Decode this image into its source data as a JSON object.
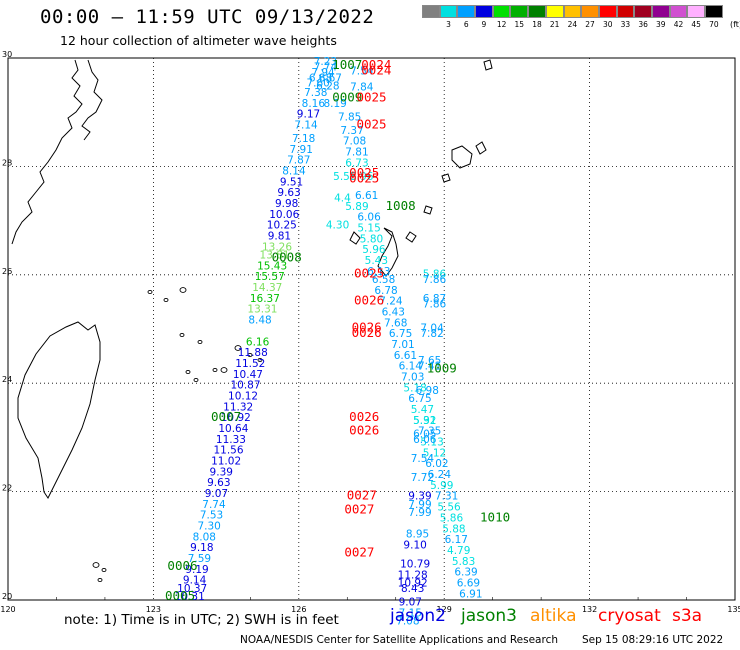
{
  "header": {
    "title": "00:00 – 11:59 UTC 09/13/2022",
    "subtitle": "12 hour collection of altimeter wave heights"
  },
  "colorbar": {
    "labels": [
      "3",
      "6",
      "9",
      "12",
      "15",
      "18",
      "21",
      "24",
      "27",
      "30",
      "33",
      "36",
      "39",
      "42",
      "45",
      "70"
    ],
    "colors": [
      "#808080",
      "#00e0e0",
      "#00a0ff",
      "#0000e0",
      "#00e000",
      "#00b000",
      "#008000",
      "#ffff00",
      "#ffc000",
      "#ff9000",
      "#ff0000",
      "#d00000",
      "#a00020",
      "#900090",
      "#d050d0",
      "#ffb0ff",
      "#000000"
    ],
    "unit": "(ft)"
  },
  "map": {
    "lon_ticks": [
      "120",
      "123",
      "126",
      "129",
      "132",
      "135"
    ],
    "lat_ticks": [
      "30",
      "28",
      "26",
      "24",
      "22",
      "20"
    ],
    "lon_range": [
      120,
      135
    ],
    "lat_range": [
      20,
      30
    ],
    "grid": true
  },
  "legend": {
    "note": "note: 1) Time is in UTC; 2) SWH is in feet",
    "items": [
      {
        "label": "jason2",
        "color": "#0000e0"
      },
      {
        "label": "jason3",
        "color": "#008000"
      },
      {
        "label": "altika",
        "color": "#ff9000"
      },
      {
        "label": "cryosat",
        "color": "#ff0000"
      },
      {
        "label": "s3a",
        "color": "#ff0000"
      }
    ]
  },
  "footer": {
    "credit": "NOAA/NESDIS Center for Satellite Applications and Research",
    "timestamp": "Sep 15 08:29:16 UTC 2022"
  },
  "chart_data": {
    "type": "scatter",
    "observations": [
      {
        "lon": 126.55,
        "lat": 29.87,
        "v": "7.23",
        "c": "#00a0ff"
      },
      {
        "lon": 126.55,
        "lat": 29.77,
        "v": "7.74",
        "c": "#00a0ff"
      },
      {
        "lon": 126.5,
        "lat": 29.67,
        "v": "7.94",
        "c": "#00a0ff"
      },
      {
        "lon": 126.45,
        "lat": 29.57,
        "v": "6.88",
        "c": "#00a0ff"
      },
      {
        "lon": 126.65,
        "lat": 29.57,
        "v": "6.67",
        "c": "#00a0ff"
      },
      {
        "lon": 126.4,
        "lat": 29.47,
        "v": "7.60",
        "c": "#00a0ff"
      },
      {
        "lon": 126.6,
        "lat": 29.42,
        "v": "6.28",
        "c": "#00a0ff"
      },
      {
        "lon": 126.35,
        "lat": 29.3,
        "v": "7.38",
        "c": "#00a0ff"
      },
      {
        "lon": 126.3,
        "lat": 29.1,
        "v": "8.16",
        "c": "#00a0ff"
      },
      {
        "lon": 126.75,
        "lat": 29.1,
        "v": "8.19",
        "c": "#00a0ff"
      },
      {
        "lon": 126.2,
        "lat": 28.9,
        "v": "9.17",
        "c": "#0000e0"
      },
      {
        "lon": 126.15,
        "lat": 28.7,
        "v": "7.14",
        "c": "#00a0ff"
      },
      {
        "lon": 126.1,
        "lat": 28.45,
        "v": "7.18",
        "c": "#00a0ff"
      },
      {
        "lon": 126.05,
        "lat": 28.25,
        "v": "7.91",
        "c": "#00a0ff"
      },
      {
        "lon": 126.0,
        "lat": 28.05,
        "v": "7.87",
        "c": "#00a0ff"
      },
      {
        "lon": 125.9,
        "lat": 27.85,
        "v": "8.14",
        "c": "#00a0ff"
      },
      {
        "lon": 125.85,
        "lat": 27.65,
        "v": "9.51",
        "c": "#0000e0"
      },
      {
        "lon": 125.8,
        "lat": 27.45,
        "v": "9.63",
        "c": "#0000e0"
      },
      {
        "lon": 125.75,
        "lat": 27.25,
        "v": "9.98",
        "c": "#0000e0"
      },
      {
        "lon": 125.7,
        "lat": 27.05,
        "v": "10.06",
        "c": "#0000e0"
      },
      {
        "lon": 125.65,
        "lat": 26.85,
        "v": "10.25",
        "c": "#0000e0"
      },
      {
        "lon": 125.6,
        "lat": 26.65,
        "v": "9.81",
        "c": "#0000e0"
      },
      {
        "lon": 125.55,
        "lat": 26.45,
        "v": "13.26",
        "c": "#80e060"
      },
      {
        "lon": 125.5,
        "lat": 26.3,
        "v": "13.81",
        "c": "#80e060"
      },
      {
        "lon": 125.45,
        "lat": 26.1,
        "v": "15.43",
        "c": "#00c000"
      },
      {
        "lon": 125.4,
        "lat": 25.9,
        "v": "15.57",
        "c": "#00c000"
      },
      {
        "lon": 125.35,
        "lat": 25.7,
        "v": "14.37",
        "c": "#80e060"
      },
      {
        "lon": 125.3,
        "lat": 25.5,
        "v": "16.37",
        "c": "#00c000"
      },
      {
        "lon": 125.25,
        "lat": 25.3,
        "v": "13.31",
        "c": "#80e060"
      },
      {
        "lon": 125.2,
        "lat": 25.1,
        "v": "8.48",
        "c": "#00a0ff"
      },
      {
        "lon": 125.15,
        "lat": 24.7,
        "v": "6.16",
        "c": "#00c000"
      },
      {
        "lon": 125.05,
        "lat": 24.5,
        "v": "11.88",
        "c": "#0000e0"
      },
      {
        "lon": 125.0,
        "lat": 24.3,
        "v": "11.52",
        "c": "#0000e0"
      },
      {
        "lon": 124.95,
        "lat": 24.1,
        "v": "10.47",
        "c": "#0000e0"
      },
      {
        "lon": 124.9,
        "lat": 23.9,
        "v": "10.87",
        "c": "#0000e0"
      },
      {
        "lon": 124.85,
        "lat": 23.7,
        "v": "10.12",
        "c": "#0000e0"
      },
      {
        "lon": 124.75,
        "lat": 23.5,
        "v": "11.32",
        "c": "#0000e0"
      },
      {
        "lon": 124.7,
        "lat": 23.3,
        "v": "10.92",
        "c": "#0000e0"
      },
      {
        "lon": 124.65,
        "lat": 23.1,
        "v": "10.64",
        "c": "#0000e0"
      },
      {
        "lon": 124.6,
        "lat": 22.9,
        "v": "11.33",
        "c": "#0000e0"
      },
      {
        "lon": 124.55,
        "lat": 22.7,
        "v": "11.56",
        "c": "#0000e0"
      },
      {
        "lon": 124.5,
        "lat": 22.5,
        "v": "11.02",
        "c": "#0000e0"
      },
      {
        "lon": 124.4,
        "lat": 22.3,
        "v": "9.39",
        "c": "#0000e0"
      },
      {
        "lon": 124.35,
        "lat": 22.1,
        "v": "9.63",
        "c": "#0000e0"
      },
      {
        "lon": 124.3,
        "lat": 21.9,
        "v": "9.07",
        "c": "#0000e0"
      },
      {
        "lon": 124.25,
        "lat": 21.7,
        "v": "7.74",
        "c": "#00a0ff"
      },
      {
        "lon": 124.2,
        "lat": 21.5,
        "v": "7.53",
        "c": "#00a0ff"
      },
      {
        "lon": 124.15,
        "lat": 21.3,
        "v": "7.30",
        "c": "#00a0ff"
      },
      {
        "lon": 124.05,
        "lat": 21.1,
        "v": "8.08",
        "c": "#00a0ff"
      },
      {
        "lon": 124.0,
        "lat": 20.9,
        "v": "9.18",
        "c": "#0000e0"
      },
      {
        "lon": 123.95,
        "lat": 20.7,
        "v": "7.59",
        "c": "#00a0ff"
      },
      {
        "lon": 123.9,
        "lat": 20.5,
        "v": "9.19",
        "c": "#0000e0"
      },
      {
        "lon": 123.85,
        "lat": 20.3,
        "v": "9.14",
        "c": "#0000e0"
      },
      {
        "lon": 123.8,
        "lat": 20.15,
        "v": "10.37",
        "c": "#0000e0"
      },
      {
        "lon": 123.75,
        "lat": 20.0,
        "v": "10.31",
        "c": "#0000e0"
      },
      {
        "lon": 127.3,
        "lat": 29.7,
        "v": "7.54",
        "c": "#00a0ff"
      },
      {
        "lon": 127.3,
        "lat": 29.4,
        "v": "7.84",
        "c": "#00a0ff"
      },
      {
        "lon": 127.05,
        "lat": 28.85,
        "v": "7.85",
        "c": "#00a0ff"
      },
      {
        "lon": 127.1,
        "lat": 28.6,
        "v": "7.37",
        "c": "#00a0ff"
      },
      {
        "lon": 127.15,
        "lat": 28.4,
        "v": "7.08",
        "c": "#00a0ff"
      },
      {
        "lon": 127.2,
        "lat": 28.2,
        "v": "7.81",
        "c": "#00a0ff"
      },
      {
        "lon": 127.2,
        "lat": 28.0,
        "v": "6.73",
        "c": "#00e0e0"
      },
      {
        "lon": 126.95,
        "lat": 27.75,
        "v": "5.58",
        "c": "#00e0e0"
      },
      {
        "lon": 127.3,
        "lat": 27.75,
        "v": "5.96",
        "c": "#00e0e0"
      },
      {
        "lon": 127.4,
        "lat": 27.4,
        "v": "6.61",
        "c": "#00a0ff"
      },
      {
        "lon": 126.9,
        "lat": 27.35,
        "v": "4.4",
        "c": "#00e0e0"
      },
      {
        "lon": 127.2,
        "lat": 27.2,
        "v": "5.89",
        "c": "#00e0e0"
      },
      {
        "lon": 127.45,
        "lat": 27.0,
        "v": "6.06",
        "c": "#00a0ff"
      },
      {
        "lon": 126.8,
        "lat": 26.85,
        "v": "4.30",
        "c": "#00e0e0"
      },
      {
        "lon": 127.45,
        "lat": 26.8,
        "v": "5.15",
        "c": "#00e0e0"
      },
      {
        "lon": 127.5,
        "lat": 26.6,
        "v": "5.80",
        "c": "#00e0e0"
      },
      {
        "lon": 127.55,
        "lat": 26.4,
        "v": "5.96",
        "c": "#00e0e0"
      },
      {
        "lon": 127.6,
        "lat": 26.2,
        "v": "5.43",
        "c": "#00e0e0"
      },
      {
        "lon": 127.65,
        "lat": 26.0,
        "v": "6.13",
        "c": "#00a0ff"
      },
      {
        "lon": 127.75,
        "lat": 25.85,
        "v": "6.58",
        "c": "#00a0ff"
      },
      {
        "lon": 127.8,
        "lat": 25.65,
        "v": "6.78",
        "c": "#00a0ff"
      },
      {
        "lon": 127.9,
        "lat": 25.45,
        "v": "7.24",
        "c": "#00a0ff"
      },
      {
        "lon": 127.95,
        "lat": 25.25,
        "v": "6.43",
        "c": "#00a0ff"
      },
      {
        "lon": 128.0,
        "lat": 25.05,
        "v": "7.68",
        "c": "#00a0ff"
      },
      {
        "lon": 128.1,
        "lat": 24.85,
        "v": "6.75",
        "c": "#00a0ff"
      },
      {
        "lon": 128.15,
        "lat": 24.65,
        "v": "7.01",
        "c": "#00a0ff"
      },
      {
        "lon": 128.2,
        "lat": 24.45,
        "v": "6.61",
        "c": "#00a0ff"
      },
      {
        "lon": 128.3,
        "lat": 24.25,
        "v": "6.14",
        "c": "#00a0ff"
      },
      {
        "lon": 128.35,
        "lat": 24.05,
        "v": "7.03",
        "c": "#00a0ff"
      },
      {
        "lon": 128.4,
        "lat": 23.85,
        "v": "5.18",
        "c": "#00e0e0"
      },
      {
        "lon": 128.5,
        "lat": 23.65,
        "v": "6.75",
        "c": "#00a0ff"
      },
      {
        "lon": 128.55,
        "lat": 23.45,
        "v": "5.47",
        "c": "#00e0e0"
      },
      {
        "lon": 128.6,
        "lat": 23.25,
        "v": "5.31",
        "c": "#00e0e0"
      },
      {
        "lon": 128.7,
        "lat": 23.05,
        "v": "7.35",
        "c": "#00a0ff"
      },
      {
        "lon": 128.75,
        "lat": 22.85,
        "v": "5.13",
        "c": "#00e0e0"
      },
      {
        "lon": 128.8,
        "lat": 22.65,
        "v": "5.12",
        "c": "#00e0e0"
      },
      {
        "lon": 128.85,
        "lat": 22.45,
        "v": "6.02",
        "c": "#00a0ff"
      },
      {
        "lon": 128.9,
        "lat": 22.25,
        "v": "6.24",
        "c": "#00a0ff"
      },
      {
        "lon": 128.95,
        "lat": 22.05,
        "v": "5.99",
        "c": "#00e0e0"
      },
      {
        "lon": 129.05,
        "lat": 21.85,
        "v": "7.31",
        "c": "#00a0ff"
      },
      {
        "lon": 129.1,
        "lat": 21.65,
        "v": "5.56",
        "c": "#00e0e0"
      },
      {
        "lon": 129.15,
        "lat": 21.45,
        "v": "5.86",
        "c": "#00e0e0"
      },
      {
        "lon": 129.2,
        "lat": 21.25,
        "v": "5.88",
        "c": "#00e0e0"
      },
      {
        "lon": 129.25,
        "lat": 21.05,
        "v": "6.17",
        "c": "#00a0ff"
      },
      {
        "lon": 129.3,
        "lat": 20.85,
        "v": "4.79",
        "c": "#00e0e0"
      },
      {
        "lon": 129.4,
        "lat": 20.65,
        "v": "5.83",
        "c": "#00e0e0"
      },
      {
        "lon": 129.45,
        "lat": 20.45,
        "v": "6.39",
        "c": "#00a0ff"
      },
      {
        "lon": 129.5,
        "lat": 20.25,
        "v": "6.69",
        "c": "#00a0ff"
      },
      {
        "lon": 129.55,
        "lat": 20.05,
        "v": "6.91",
        "c": "#00a0ff"
      },
      {
        "lon": 128.8,
        "lat": 25.95,
        "v": "5.86",
        "c": "#00e0e0"
      },
      {
        "lon": 128.8,
        "lat": 25.85,
        "v": "7.86",
        "c": "#00a0ff"
      },
      {
        "lon": 128.8,
        "lat": 25.5,
        "v": "6.87",
        "c": "#00a0ff"
      },
      {
        "lon": 128.8,
        "lat": 25.4,
        "v": "7.86",
        "c": "#00a0ff"
      },
      {
        "lon": 128.75,
        "lat": 24.95,
        "v": "7.04",
        "c": "#00a0ff"
      },
      {
        "lon": 128.75,
        "lat": 24.85,
        "v": "7.82",
        "c": "#00a0ff"
      },
      {
        "lon": 128.7,
        "lat": 24.35,
        "v": "7.65",
        "c": "#00a0ff"
      },
      {
        "lon": 128.7,
        "lat": 24.25,
        "v": "7.41",
        "c": "#00a0ff"
      },
      {
        "lon": 128.65,
        "lat": 23.8,
        "v": "6.98",
        "c": "#00a0ff"
      },
      {
        "lon": 128.6,
        "lat": 23.25,
        "v": "5.92",
        "c": "#00e0e0"
      },
      {
        "lon": 128.6,
        "lat": 23.0,
        "v": "6.05",
        "c": "#00a0ff"
      },
      {
        "lon": 128.6,
        "lat": 22.9,
        "v": "6.06",
        "c": "#00a0ff"
      },
      {
        "lon": 128.55,
        "lat": 22.55,
        "v": "7.54",
        "c": "#00a0ff"
      },
      {
        "lon": 128.55,
        "lat": 22.2,
        "v": "7.72",
        "c": "#00a0ff"
      },
      {
        "lon": 128.5,
        "lat": 21.85,
        "v": "9.39",
        "c": "#0000e0"
      },
      {
        "lon": 128.5,
        "lat": 21.7,
        "v": "7.99",
        "c": "#00a0ff"
      },
      {
        "lon": 128.5,
        "lat": 21.55,
        "v": "7.99",
        "c": "#00a0ff"
      },
      {
        "lon": 128.45,
        "lat": 21.15,
        "v": "8.95",
        "c": "#00a0ff"
      },
      {
        "lon": 128.4,
        "lat": 20.95,
        "v": "9.10",
        "c": "#0000e0"
      },
      {
        "lon": 128.4,
        "lat": 20.6,
        "v": "10.79",
        "c": "#0000e0"
      },
      {
        "lon": 128.35,
        "lat": 20.4,
        "v": "11.28",
        "c": "#0000e0"
      },
      {
        "lon": 128.35,
        "lat": 20.25,
        "v": "10.92",
        "c": "#0000e0"
      },
      {
        "lon": 128.35,
        "lat": 20.15,
        "v": "8.43",
        "c": "#0000e0"
      },
      {
        "lon": 128.3,
        "lat": 19.9,
        "v": "9.07",
        "c": "#0000e0"
      },
      {
        "lon": 128.3,
        "lat": 19.7,
        "v": "7.15",
        "c": "#00a0ff"
      },
      {
        "lon": 128.25,
        "lat": 19.55,
        "v": "7.08",
        "c": "#00a0ff"
      }
    ],
    "time_labels": [
      {
        "lon": 127.0,
        "lat": 29.8,
        "v": "1007",
        "c": "#008000"
      },
      {
        "lon": 127.6,
        "lat": 29.8,
        "v": "0024",
        "c": "#ff0000"
      },
      {
        "lon": 127.6,
        "lat": 29.7,
        "v": "0024",
        "c": "#ff0000"
      },
      {
        "lon": 127.0,
        "lat": 29.2,
        "v": "0009",
        "c": "#008000"
      },
      {
        "lon": 127.5,
        "lat": 29.2,
        "v": "0025",
        "c": "#ff0000"
      },
      {
        "lon": 127.5,
        "lat": 28.7,
        "v": "0025",
        "c": "#ff0000"
      },
      {
        "lon": 127.35,
        "lat": 27.8,
        "v": "0025",
        "c": "#ff0000"
      },
      {
        "lon": 127.35,
        "lat": 27.7,
        "v": "0025",
        "c": "#ff0000"
      },
      {
        "lon": 128.1,
        "lat": 27.2,
        "v": "1008",
        "c": "#008000"
      },
      {
        "lon": 125.75,
        "lat": 26.25,
        "v": "0008",
        "c": "#008000"
      },
      {
        "lon": 127.45,
        "lat": 25.95,
        "v": "0025",
        "c": "#ff0000"
      },
      {
        "lon": 127.45,
        "lat": 25.45,
        "v": "0026",
        "c": "#ff0000"
      },
      {
        "lon": 127.4,
        "lat": 24.95,
        "v": "0026",
        "c": "#ff0000"
      },
      {
        "lon": 127.4,
        "lat": 24.85,
        "v": "0026",
        "c": "#ff0000"
      },
      {
        "lon": 128.95,
        "lat": 24.2,
        "v": "1009",
        "c": "#008000"
      },
      {
        "lon": 124.5,
        "lat": 23.3,
        "v": "0007",
        "c": "#008000"
      },
      {
        "lon": 127.35,
        "lat": 23.3,
        "v": "0026",
        "c": "#ff0000"
      },
      {
        "lon": 127.35,
        "lat": 23.05,
        "v": "0026",
        "c": "#ff0000"
      },
      {
        "lon": 127.3,
        "lat": 21.85,
        "v": "0027",
        "c": "#ff0000"
      },
      {
        "lon": 127.25,
        "lat": 21.6,
        "v": "0027",
        "c": "#ff0000"
      },
      {
        "lon": 130.05,
        "lat": 21.45,
        "v": "1010",
        "c": "#008000"
      },
      {
        "lon": 127.25,
        "lat": 20.8,
        "v": "0027",
        "c": "#ff0000"
      },
      {
        "lon": 123.6,
        "lat": 20.55,
        "v": "0006",
        "c": "#008000"
      },
      {
        "lon": 123.55,
        "lat": 20.0,
        "v": "0005",
        "c": "#008000"
      }
    ]
  }
}
